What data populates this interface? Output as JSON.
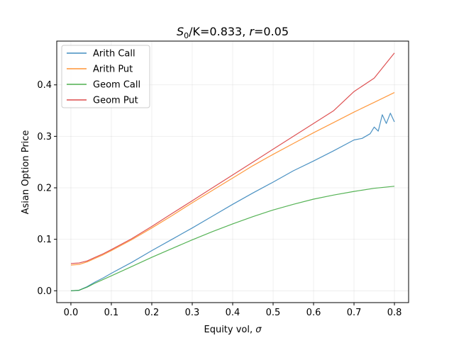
{
  "chart_data": {
    "type": "line",
    "title": {
      "prefix": "S",
      "sub": "0",
      "middle": "/K=0.833, ",
      "italic": "r",
      "suffix": "=0.05"
    },
    "xlabel": {
      "text": "Equity vol, ",
      "symbol": "σ"
    },
    "ylabel": "Asian Option Price",
    "xlim": [
      -0.035,
      0.835
    ],
    "ylim": [
      -0.023,
      0.485
    ],
    "xticks": [
      0.0,
      0.1,
      0.2,
      0.3,
      0.4,
      0.5,
      0.6,
      0.7,
      0.8
    ],
    "xtick_labels": [
      "0.0",
      "0.1",
      "0.2",
      "0.3",
      "0.4",
      "0.5",
      "0.6",
      "0.7",
      "0.8"
    ],
    "yticks": [
      0.0,
      0.1,
      0.2,
      0.3,
      0.4
    ],
    "ytick_labels": [
      "0.0",
      "0.1",
      "0.2",
      "0.3",
      "0.4"
    ],
    "grid": true,
    "legend_position": "upper-left",
    "series": [
      {
        "name": "Arith Call",
        "color": "#1f77b4",
        "x": [
          0.0,
          0.02,
          0.04,
          0.06,
          0.08,
          0.1,
          0.15,
          0.2,
          0.25,
          0.3,
          0.35,
          0.4,
          0.45,
          0.5,
          0.55,
          0.6,
          0.65,
          0.7,
          0.72,
          0.74,
          0.75,
          0.76,
          0.77,
          0.78,
          0.79,
          0.8
        ],
        "y": [
          0.0,
          0.001,
          0.008,
          0.017,
          0.025,
          0.034,
          0.055,
          0.078,
          0.1,
          0.122,
          0.145,
          0.168,
          0.19,
          0.211,
          0.233,
          0.252,
          0.272,
          0.293,
          0.296,
          0.305,
          0.318,
          0.31,
          0.342,
          0.325,
          0.345,
          0.328
        ]
      },
      {
        "name": "Arith Put",
        "color": "#ff7f0e",
        "x": [
          0.0,
          0.02,
          0.04,
          0.06,
          0.08,
          0.1,
          0.15,
          0.2,
          0.25,
          0.3,
          0.35,
          0.4,
          0.45,
          0.5,
          0.55,
          0.6,
          0.65,
          0.7,
          0.75,
          0.8
        ],
        "y": [
          0.05,
          0.051,
          0.056,
          0.063,
          0.07,
          0.078,
          0.099,
          0.122,
          0.146,
          0.171,
          0.195,
          0.219,
          0.243,
          0.265,
          0.286,
          0.307,
          0.327,
          0.347,
          0.366,
          0.385
        ]
      },
      {
        "name": "Geom Call",
        "color": "#2ca02c",
        "x": [
          0.0,
          0.02,
          0.04,
          0.06,
          0.08,
          0.1,
          0.15,
          0.2,
          0.25,
          0.3,
          0.35,
          0.4,
          0.45,
          0.5,
          0.55,
          0.6,
          0.65,
          0.7,
          0.75,
          0.8
        ],
        "y": [
          0.0,
          0.001,
          0.007,
          0.015,
          0.022,
          0.029,
          0.047,
          0.065,
          0.082,
          0.099,
          0.115,
          0.13,
          0.144,
          0.157,
          0.168,
          0.178,
          0.186,
          0.193,
          0.199,
          0.203
        ]
      },
      {
        "name": "Geom Put",
        "color": "#d62728",
        "x": [
          0.0,
          0.02,
          0.04,
          0.06,
          0.08,
          0.1,
          0.15,
          0.2,
          0.25,
          0.3,
          0.35,
          0.4,
          0.45,
          0.5,
          0.55,
          0.6,
          0.65,
          0.7,
          0.75,
          0.8
        ],
        "y": [
          0.053,
          0.054,
          0.058,
          0.065,
          0.072,
          0.08,
          0.101,
          0.125,
          0.15,
          0.175,
          0.2,
          0.225,
          0.25,
          0.275,
          0.3,
          0.325,
          0.35,
          0.387,
          0.413,
          0.462
        ]
      }
    ]
  }
}
